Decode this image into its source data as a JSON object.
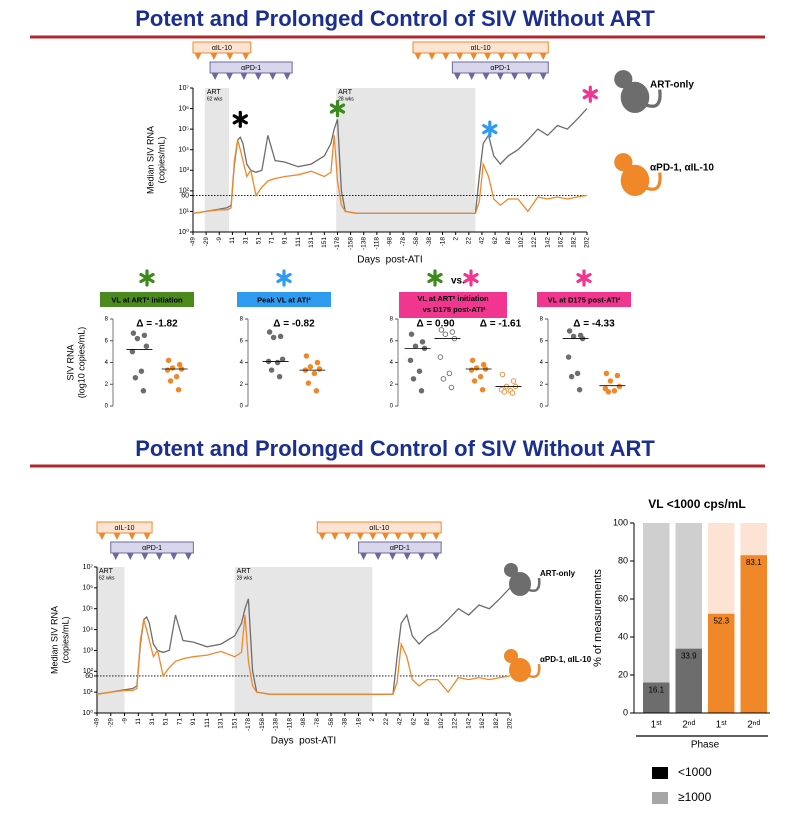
{
  "slide_titles": [
    "Potent and Prolonged Control of SIV Without ART",
    "Potent and Prolonged Control of SIV Without ART"
  ],
  "chart_data": [
    {
      "type": "line",
      "ylabel": [
        "Median SIV RNA",
        "(copies/mL)"
      ],
      "xlabel": "Days  post-ATI",
      "log": true,
      "xlim": [
        0,
        600
      ],
      "ylim": [
        1,
        10000000
      ],
      "xticks": [
        {
          "value": 0,
          "label": "-49"
        },
        {
          "value": 20,
          "label": "-29"
        },
        {
          "value": 40,
          "label": "-9"
        },
        {
          "value": 60,
          "label": "11"
        },
        {
          "value": 80,
          "label": "31"
        },
        {
          "value": 100,
          "label": "51"
        },
        {
          "value": 120,
          "label": "71"
        },
        {
          "value": 140,
          "label": "91"
        },
        {
          "value": 160,
          "label": "111"
        },
        {
          "value": 180,
          "label": "131"
        },
        {
          "value": 200,
          "label": "151"
        },
        {
          "value": 220,
          "label": "-178"
        },
        {
          "value": 240,
          "label": "-158"
        },
        {
          "value": 260,
          "label": "-138"
        },
        {
          "value": 280,
          "label": "-118"
        },
        {
          "value": 300,
          "label": "-98"
        },
        {
          "value": 320,
          "label": "-78"
        },
        {
          "value": 340,
          "label": "-58"
        },
        {
          "value": 360,
          "label": "-38"
        },
        {
          "value": 380,
          "label": "-18"
        },
        {
          "value": 400,
          "label": "2"
        },
        {
          "value": 420,
          "label": "22"
        },
        {
          "value": 440,
          "label": "42"
        },
        {
          "value": 460,
          "label": "62"
        },
        {
          "value": 480,
          "label": "82"
        },
        {
          "value": 500,
          "label": "102"
        },
        {
          "value": 520,
          "label": "122"
        },
        {
          "value": 540,
          "label": "142"
        },
        {
          "value": 560,
          "label": "162"
        },
        {
          "value": 580,
          "label": "182"
        },
        {
          "value": 600,
          "label": "202"
        }
      ],
      "yticks": [
        {
          "value": 1,
          "label": "10⁰"
        },
        {
          "value": 10,
          "label": "10¹"
        },
        60,
        {
          "value": 100,
          "label": "10²"
        },
        {
          "value": 1000,
          "label": "10³"
        },
        {
          "value": 10000,
          "label": "10⁴"
        },
        {
          "value": 100000,
          "label": "10⁵"
        },
        {
          "value": 1000000,
          "label": "10⁶"
        },
        {
          "value": 10000000,
          "label": "10⁷"
        }
      ],
      "threshold": 60,
      "shaded": [
        {
          "label": "ART",
          "sublabel": "62 wks",
          "range": [
            18,
            55
          ]
        },
        {
          "label": "ART",
          "sublabel": "28 wks",
          "range": [
            218,
            430
          ]
        }
      ],
      "treatments": [
        {
          "label": "αIL-10",
          "range": [
            0,
            88
          ],
          "color": "#f0882a",
          "fill": "#fde3d4"
        },
        {
          "label": "αPD-1",
          "range": [
            26,
            151
          ],
          "color": "#6b6a9e",
          "fill": "#d9d5ea"
        },
        {
          "label": "αIL-10",
          "range": [
            335,
            541
          ],
          "color": "#f0882a",
          "fill": "#fde3d4"
        },
        {
          "label": "αPD-1",
          "range": [
            395,
            541
          ],
          "color": "#6b6a9e",
          "fill": "#d9d5ea"
        }
      ],
      "stars": [
        {
          "x": 72,
          "y": 300000,
          "color": "#000000"
        },
        {
          "x": 220,
          "y": 1000000,
          "color": "#3a8a1c"
        },
        {
          "x": 452,
          "y": 100000,
          "color": "#2e9bf0"
        },
        {
          "x": 605,
          "y": 5000000,
          "color": "#f0368f"
        }
      ],
      "x": [
        0,
        20,
        40,
        52,
        58,
        63,
        68,
        72,
        76,
        82,
        88,
        96,
        105,
        114,
        125,
        140,
        160,
        180,
        200,
        210,
        215,
        220,
        226,
        232,
        250,
        300,
        350,
        400,
        430,
        436,
        442,
        450,
        458,
        468,
        480,
        495,
        510,
        525,
        540,
        555,
        570,
        585,
        600
      ],
      "series": [
        {
          "name": "ART-only",
          "color": "#6d6d6d",
          "values": [
            8,
            10,
            13,
            15,
            20,
            2000,
            30000,
            40000,
            20000,
            2000,
            1000,
            800,
            1000,
            50000,
            3000,
            2500,
            1500,
            2000,
            5000,
            20000,
            100000,
            300000,
            100,
            10,
            8,
            8,
            8,
            8,
            8,
            500,
            20000,
            50000,
            5000,
            2000,
            5000,
            10000,
            30000,
            100000,
            50000,
            150000,
            100000,
            300000,
            1000000
          ]
        },
        {
          "name": "αPD-1, αIL-10",
          "color": "#f0882a",
          "values": [
            8,
            10,
            12,
            12,
            15,
            3000,
            30000,
            10000,
            3000,
            500,
            1000,
            60,
            150,
            300,
            400,
            500,
            600,
            900,
            500,
            800,
            50000,
            300,
            20,
            10,
            8,
            8,
            8,
            8,
            8,
            30,
            2000,
            500,
            40,
            20,
            40,
            40,
            10,
            50,
            40,
            50,
            40,
            50,
            60
          ]
        }
      ]
    },
    {
      "type": "dot",
      "title": "VL at ART² initiation",
      "title_fill": "#4a8a1f",
      "title_color": "#000000",
      "stars": [
        "#3a8a1c"
      ],
      "ylabel": [
        "SIV RNA",
        "(log10 copies/mL)"
      ],
      "ylim": [
        0,
        8
      ],
      "yticks": [
        0,
        2,
        4,
        6,
        8
      ],
      "deltas": [
        "Δ = -1.82"
      ],
      "series": [
        {
          "color": "#6d6d6d",
          "open": false,
          "median": 5.2,
          "values": [
            6.7,
            6.5,
            6.2,
            5.5,
            5.0,
            3.2,
            2.6,
            1.4
          ]
        },
        {
          "color": "#f0882a",
          "open": false,
          "median": 3.4,
          "values": [
            4.2,
            3.8,
            3.5,
            3.4,
            3.3,
            2.7,
            2.3,
            1.5
          ]
        }
      ]
    },
    {
      "type": "dot",
      "title": "Peak VL at ATI²",
      "title_fill": "#2e9bf0",
      "title_color": "#000000",
      "stars": [
        "#2e9bf0"
      ],
      "ylim": [
        0,
        8
      ],
      "yticks": [
        0,
        2,
        4,
        6,
        8
      ],
      "deltas": [
        "Δ = -0.82"
      ],
      "series": [
        {
          "color": "#6d6d6d",
          "open": false,
          "median": 4.1,
          "values": [
            6.8,
            6.4,
            6.3,
            4.3,
            4.1,
            4.0,
            3.3,
            2.7
          ]
        },
        {
          "color": "#f0882a",
          "open": false,
          "median": 3.3,
          "values": [
            4.6,
            4.0,
            3.6,
            3.4,
            3.3,
            3.0,
            2.1,
            1.4
          ]
        }
      ]
    },
    {
      "type": "dot",
      "title": "VL at ART² initiation vs D175 post-ATI²",
      "title_fill": "#f0368f",
      "title_color": "#ffffff",
      "stars": [
        "#3a8a1c",
        "#f0368f"
      ],
      "star_joiner": "vs.",
      "ylim": [
        0,
        8
      ],
      "yticks": [
        0,
        2,
        4,
        6,
        8
      ],
      "deltas": [
        "Δ = 0.90",
        "Δ = -1.61"
      ],
      "series": [
        {
          "color": "#6d6d6d",
          "open": false,
          "median": 5.3,
          "values": [
            6.6,
            5.9,
            5.5,
            5.3,
            4.2,
            3.2,
            2.5,
            1.4
          ]
        },
        {
          "color": "#6d6d6d",
          "open": true,
          "median": 6.2,
          "values": [
            7.0,
            6.8,
            6.6,
            6.2,
            4.5,
            3.0,
            2.5,
            1.7
          ]
        },
        {
          "color": "#f0882a",
          "open": false,
          "median": 3.4,
          "values": [
            4.2,
            3.8,
            3.5,
            3.4,
            3.3,
            2.7,
            2.3,
            1.5
          ]
        },
        {
          "color": "#f0882a",
          "open": true,
          "median": 1.8,
          "values": [
            2.9,
            2.3,
            1.8,
            1.8,
            1.5,
            1.4,
            1.3,
            1.2
          ]
        }
      ]
    },
    {
      "type": "dot",
      "title": "VL at D175 post-ATI²",
      "title_fill": "#f0368f",
      "title_color": "#000000",
      "stars": [
        "#f0368f"
      ],
      "ylim": [
        0,
        8
      ],
      "yticks": [
        0,
        2,
        4,
        6,
        8
      ],
      "deltas": [
        "Δ = -4.33"
      ],
      "series": [
        {
          "color": "#6d6d6d",
          "open": false,
          "median": 6.2,
          "values": [
            6.9,
            6.5,
            6.4,
            6.2,
            4.5,
            3.0,
            2.7,
            1.5
          ]
        },
        {
          "color": "#f0882a",
          "open": false,
          "median": 1.87,
          "values": [
            3.0,
            2.8,
            2.3,
            1.8,
            1.6,
            1.4,
            1.3
          ]
        }
      ]
    },
    {
      "type": "line",
      "ylabel": [
        "Median SIV RNA",
        "(copies/mL)"
      ],
      "xlabel": "Days  post-ATI",
      "log": true,
      "xlim": [
        0,
        600
      ],
      "ylim": [
        1,
        10000000
      ],
      "xticks": [
        {
          "value": 0,
          "label": "-49"
        },
        {
          "value": 20,
          "label": "-29"
        },
        {
          "value": 40,
          "label": "-9"
        },
        {
          "value": 60,
          "label": "11"
        },
        {
          "value": 80,
          "label": "31"
        },
        {
          "value": 100,
          "label": "51"
        },
        {
          "value": 120,
          "label": "71"
        },
        {
          "value": 140,
          "label": "91"
        },
        {
          "value": 160,
          "label": "111"
        },
        {
          "value": 180,
          "label": "131"
        },
        {
          "value": 200,
          "label": "151"
        },
        {
          "value": 220,
          "label": "-178"
        },
        {
          "value": 240,
          "label": "-158"
        },
        {
          "value": 260,
          "label": "-138"
        },
        {
          "value": 280,
          "label": "-118"
        },
        {
          "value": 300,
          "label": "-98"
        },
        {
          "value": 320,
          "label": "-78"
        },
        {
          "value": 340,
          "label": "-58"
        },
        {
          "value": 360,
          "label": "-38"
        },
        {
          "value": 380,
          "label": "-18"
        },
        {
          "value": 400,
          "label": "2"
        },
        {
          "value": 420,
          "label": "22"
        },
        {
          "value": 440,
          "label": "42"
        },
        {
          "value": 460,
          "label": "62"
        },
        {
          "value": 480,
          "label": "82"
        },
        {
          "value": 500,
          "label": "102"
        },
        {
          "value": 520,
          "label": "122"
        },
        {
          "value": 540,
          "label": "142"
        },
        {
          "value": 560,
          "label": "162"
        },
        {
          "value": 580,
          "label": "182"
        },
        {
          "value": 600,
          "label": "202"
        }
      ],
      "yticks": [
        {
          "value": 1,
          "label": "10⁰"
        },
        {
          "value": 10,
          "label": "10¹"
        },
        60,
        {
          "value": 100,
          "label": "10²"
        },
        {
          "value": 1000,
          "label": "10³"
        },
        {
          "value": 10000,
          "label": "10⁴"
        },
        {
          "value": 100000,
          "label": "10⁵"
        },
        {
          "value": 1000000,
          "label": "10⁶"
        },
        {
          "value": 10000000,
          "label": "10⁷"
        }
      ],
      "threshold": 60,
      "shaded": [
        {
          "label": "ART",
          "sublabel": "62 wks",
          "range": [
            0,
            40
          ]
        },
        {
          "label": "ART",
          "sublabel": "28 wks",
          "range": [
            200,
            400
          ]
        }
      ],
      "treatments": [
        {
          "label": "αIL-10",
          "range": [
            0,
            80
          ],
          "color": "#f0882a",
          "fill": "#fde3d4"
        },
        {
          "label": "αPD-1",
          "range": [
            20,
            140
          ],
          "color": "#6b6a9e",
          "fill": "#d9d5ea"
        },
        {
          "label": "αIL-10",
          "range": [
            320,
            500
          ],
          "color": "#f0882a",
          "fill": "#fde3d4"
        },
        {
          "label": "αPD-1",
          "range": [
            380,
            500
          ],
          "color": "#6b6a9e",
          "fill": "#d9d5ea"
        }
      ],
      "x": [
        0,
        20,
        40,
        52,
        58,
        63,
        68,
        72,
        76,
        82,
        88,
        96,
        105,
        114,
        125,
        140,
        160,
        180,
        200,
        210,
        215,
        220,
        226,
        232,
        250,
        300,
        350,
        400,
        430,
        436,
        442,
        450,
        458,
        468,
        480,
        495,
        510,
        525,
        540,
        555,
        570,
        585,
        600
      ],
      "series": [
        {
          "name": "ART-only",
          "color": "#6d6d6d",
          "values": [
            8,
            10,
            13,
            15,
            20,
            2000,
            30000,
            40000,
            20000,
            2000,
            1000,
            800,
            1000,
            50000,
            3000,
            2500,
            1500,
            2000,
            5000,
            20000,
            100000,
            300000,
            100,
            10,
            8,
            8,
            8,
            8,
            8,
            500,
            20000,
            50000,
            5000,
            2000,
            5000,
            10000,
            30000,
            100000,
            50000,
            150000,
            100000,
            300000,
            1000000
          ]
        },
        {
          "name": "αPD-1, αIL-10",
          "color": "#f0882a",
          "values": [
            8,
            10,
            12,
            12,
            15,
            3000,
            30000,
            10000,
            3000,
            500,
            1000,
            60,
            150,
            300,
            400,
            500,
            600,
            900,
            500,
            800,
            50000,
            300,
            20,
            10,
            8,
            8,
            8,
            8,
            8,
            30,
            2000,
            500,
            40,
            20,
            40,
            40,
            10,
            50,
            40,
            50,
            40,
            50,
            60
          ]
        }
      ]
    },
    {
      "type": "stacked_bar",
      "title": "VL <1000 cps/mL",
      "ylabel": "% of measurements",
      "xlabel": "Phase",
      "categories": [
        "1ˢᵗ",
        "2ⁿᵈ",
        "1ˢᵗ",
        "2ⁿᵈ"
      ],
      "ylim": [
        0,
        100
      ],
      "yticks": [
        0,
        20,
        40,
        60,
        80,
        100
      ],
      "legend": "bottom",
      "series": [
        {
          "name": "<1000",
          "color": "#000000",
          "bar_colors": [
            "#6d6d6d",
            "#6d6d6d",
            "#f0882a",
            "#f0882a"
          ],
          "values": [
            16.1,
            33.9,
            52.3,
            83.1
          ]
        },
        {
          "name": "≥1000",
          "color": "#a6a6a6",
          "bar_colors": [
            "#cfcfcf",
            "#cfcfcf",
            "#fde3d4",
            "#fde3d4"
          ],
          "values": [
            83.9,
            66.1,
            47.7,
            16.9
          ]
        }
      ]
    }
  ]
}
